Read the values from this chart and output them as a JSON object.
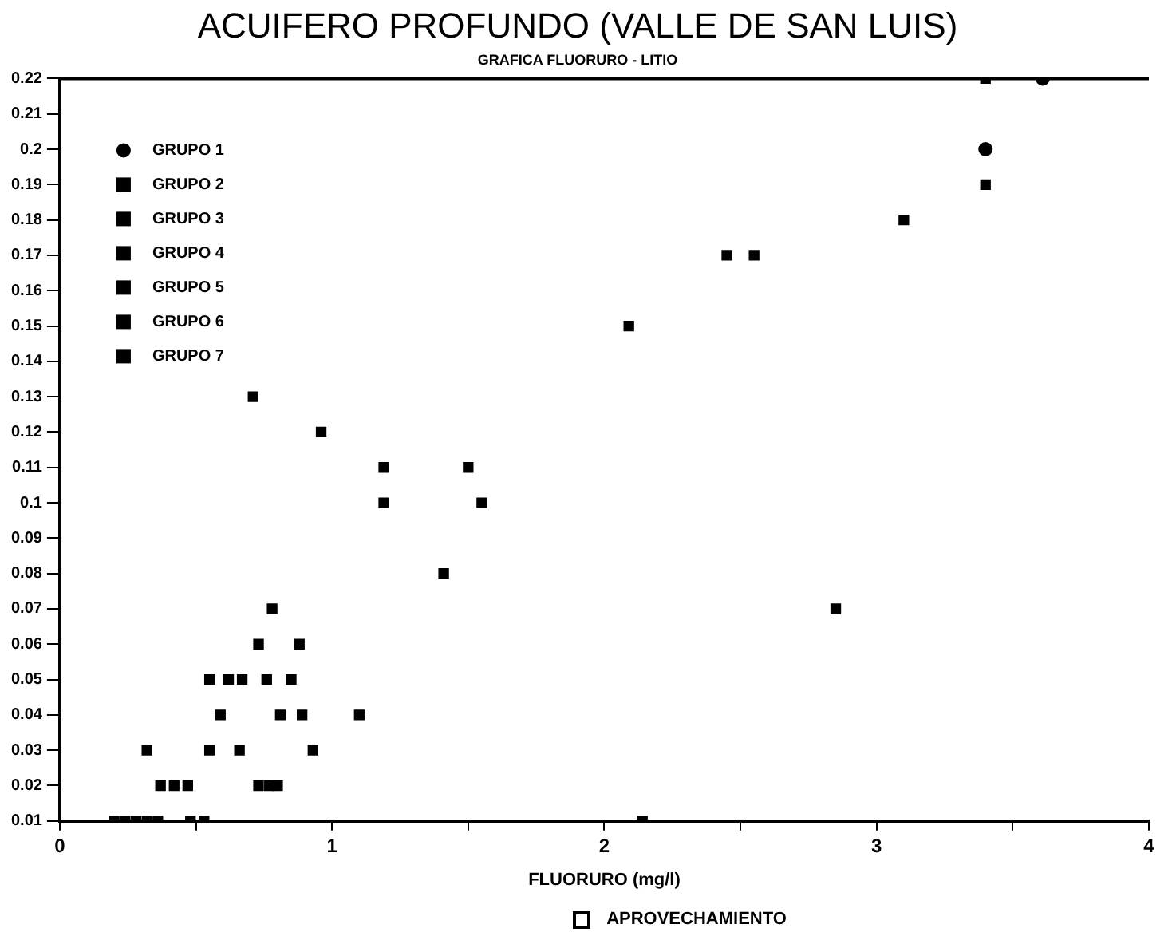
{
  "chart_data": {
    "type": "scatter",
    "title": "ACUIFERO PROFUNDO (VALLE DE SAN LUIS)",
    "subtitle": "GRAFICA FLUORURO - LITIO",
    "xlabel": "FLUORURO (mg/l)",
    "annotations": [
      "APROVECHAMIENTO"
    ],
    "xlim": [
      0,
      4
    ],
    "xticks": [
      0,
      {
        "value": 0.5,
        "label": null
      },
      1,
      {
        "value": 1.5,
        "label": null
      },
      2,
      {
        "value": 2.5,
        "label": null
      },
      3,
      {
        "value": 3.5,
        "label": null
      },
      4
    ],
    "ylim": [
      0.01,
      0.22
    ],
    "yticks": [
      0.01,
      0.02,
      0.03,
      0.04,
      0.05,
      0.06,
      0.07,
      0.08,
      0.09,
      0.1,
      0.11,
      0.12,
      0.13,
      0.14,
      0.15,
      0.16,
      0.17,
      0.18,
      0.19,
      0.2,
      0.21,
      0.22
    ],
    "grid": false,
    "legend": "top left",
    "marker": "square",
    "series": [
      {
        "name": "GRUPO 1",
        "color": "#000000",
        "marker": "circle",
        "x": [
          3.61,
          3.4
        ],
        "values": [
          0.22,
          0.2
        ]
      },
      {
        "name": "GRUPO 2",
        "color": "#000000",
        "x": [
          3.4,
          1.55,
          0.96,
          0.71
        ],
        "values": [
          0.19,
          0.1,
          0.12,
          0.13
        ]
      },
      {
        "name": "GRUPO 3",
        "color": "#000000",
        "x": [
          1.19,
          0.78,
          0.88,
          0.55,
          0.76,
          0.85,
          0.89,
          1.1,
          0.32,
          0.55,
          0.93,
          0.77,
          2.14,
          0.48,
          0.53
        ],
        "values": [
          0.1,
          0.07,
          0.06,
          0.05,
          0.05,
          0.05,
          0.04,
          0.04,
          0.03,
          0.03,
          0.03,
          0.02,
          0.01,
          0.01,
          0.01
        ]
      },
      {
        "name": "GRUPO 4",
        "color": "#000000",
        "x": [
          3.4,
          3.1,
          2.45,
          2.55,
          2.09,
          1.41,
          0.66,
          0.37
        ],
        "values": [
          0.22,
          0.18,
          0.17,
          0.17,
          0.15,
          0.08,
          0.03,
          0.02
        ]
      },
      {
        "name": "GRUPO 5",
        "color": "#000000",
        "x": [
          2.85,
          1.19,
          1.5,
          0.73,
          0.59,
          0.81
        ],
        "values": [
          0.07,
          0.11,
          0.11,
          0.06,
          0.04,
          0.04
        ]
      },
      {
        "name": "GRUPO 6",
        "color": "#000000",
        "x": [
          0.62,
          0.67,
          0.42,
          0.47,
          0.73
        ],
        "values": [
          0.05,
          0.05,
          0.02,
          0.02,
          0.02
        ]
      },
      {
        "name": "GRUPO 7",
        "color": "#000000",
        "x": [
          0.2,
          0.24,
          0.28,
          0.32,
          0.36,
          0.8
        ],
        "values": [
          0.01,
          0.01,
          0.01,
          0.01,
          0.01,
          0.02
        ]
      }
    ]
  }
}
